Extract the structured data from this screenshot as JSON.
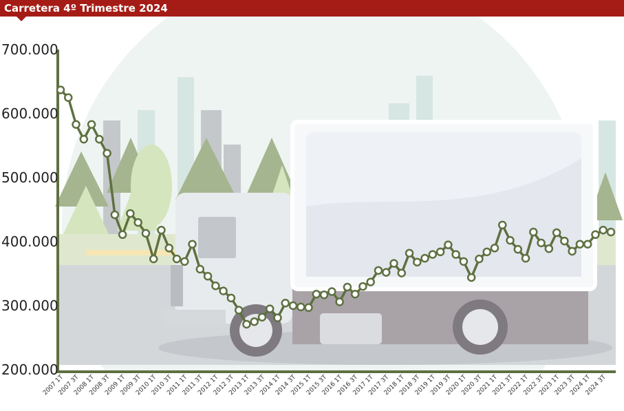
{
  "header": {
    "title": "Carretera 4º Trimestre 2024",
    "accent_color": "#a51c16"
  },
  "chart_data": {
    "type": "line",
    "title": "Carretera 4º Trimestre 2024",
    "xlabel": "",
    "ylabel": "",
    "ylim": [
      200000,
      700000
    ],
    "y_ticks": [
      "700.000",
      "600.000",
      "500.000",
      "400.000",
      "300.000",
      "200.000"
    ],
    "y_tick_values": [
      700000,
      600000,
      500000,
      400000,
      300000,
      200000
    ],
    "x_tick_labels": [
      "2007 1T",
      "2007 3T",
      "2008 1T",
      "2008 3T",
      "2009 1T",
      "2009 3T",
      "2010 1T",
      "2010 3T",
      "2011 1T",
      "2011 3T",
      "2012 1T",
      "2012 3T",
      "2013 1T",
      "2013 3T",
      "2014 1T",
      "2014 3T",
      "2015 1T",
      "2015 3T",
      "2016 1T",
      "2016 3T",
      "2017 1T",
      "2017 3T",
      "2018 1T",
      "2018 3T",
      "2019 1T",
      "2019 3T",
      "2020 1T",
      "2020 3T",
      "2021 1T",
      "2021 3T",
      "2022 1T",
      "2022 3T",
      "2023 1T",
      "2023 3T",
      "2024 1T",
      "2024 3T"
    ],
    "grid": false,
    "legend": "none",
    "line_color": "#5e7040",
    "series": [
      {
        "values": [
          637000,
          625000,
          583000,
          560000,
          583000,
          560000,
          538000,
          442000,
          411000,
          444000,
          430000,
          413000,
          373000,
          418000,
          390000,
          373000,
          369000,
          396000,
          357000,
          346000,
          331000,
          323000,
          312000,
          293000,
          271000,
          275000,
          282000,
          295000,
          281000,
          304000,
          300000,
          298000,
          297000,
          318000,
          317000,
          322000,
          306000,
          329000,
          318000,
          330000,
          337000,
          355000,
          352000,
          366000,
          351000,
          382000,
          368000,
          374000,
          380000,
          384000,
          395000,
          380000,
          369000,
          344000,
          373000,
          384000,
          390000,
          426000,
          402000,
          388000,
          374000,
          415000,
          398000,
          389000,
          414000,
          401000,
          385000,
          396000,
          396000,
          411000,
          418000,
          415000
        ]
      }
    ]
  }
}
